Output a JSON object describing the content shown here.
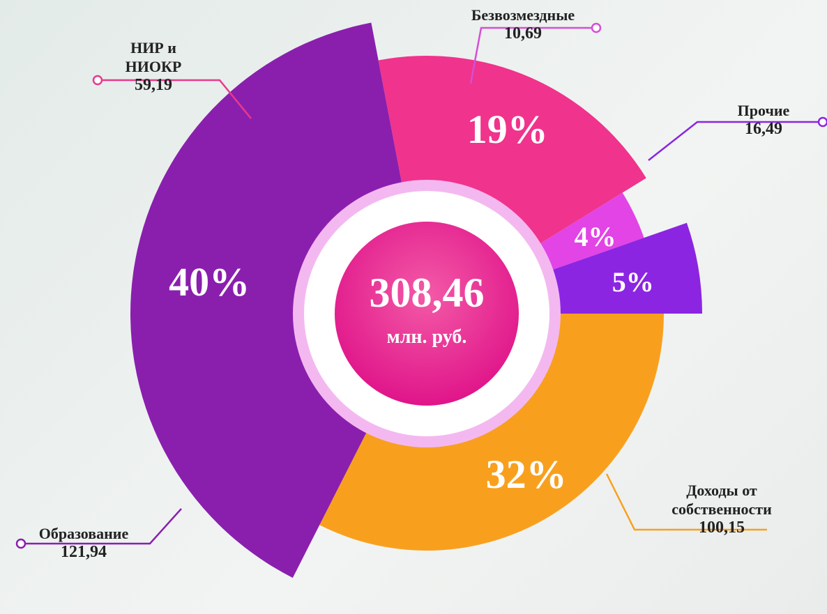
{
  "chart_data": {
    "type": "pie",
    "categories": [
      "Доходы от собственности",
      "Образование",
      "НИР и НИОКР",
      "Безвозмездные",
      "Прочие"
    ],
    "values": [
      100.15,
      121.94,
      59.19,
      10.69,
      16.49
    ],
    "value_labels": [
      "100,15",
      "121,94",
      "59,19",
      "10,69",
      "16,49"
    ],
    "percents": [
      32,
      40,
      19,
      4,
      5
    ],
    "percent_labels": [
      "32%",
      "40%",
      "19%",
      "4%",
      "5%"
    ],
    "colors": [
      "#f8a01e",
      "#8a1fae",
      "#f0338c",
      "#e244e6",
      "#8b25e2"
    ],
    "total": {
      "value": 308.46,
      "label": "308,46"
    },
    "unit": "млн. руб."
  }
}
